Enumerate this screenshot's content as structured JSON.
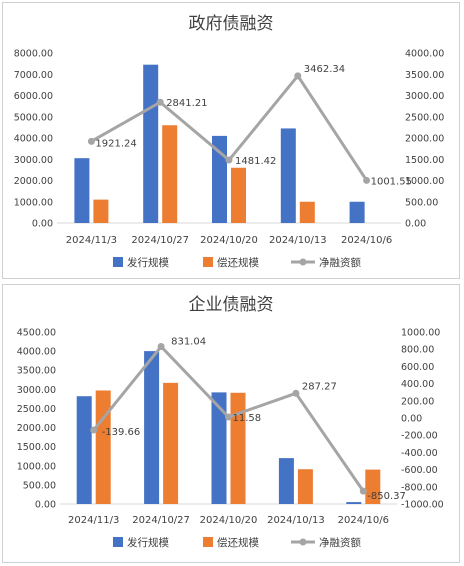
{
  "colors": {
    "issue": "#4472C4",
    "repay": "#ED7D31",
    "net": "#A5A5A5"
  },
  "chart_data": [
    {
      "type": "bar",
      "title": "政府债融资",
      "categories": [
        "2024/11/3",
        "2024/10/27",
        "2024/10/20",
        "2024/10/13",
        "2024/10/6"
      ],
      "series": [
        {
          "name": "发行规模",
          "type": "bar",
          "axis": "left",
          "values": [
            3050,
            7450,
            4100,
            4450,
            1000
          ]
        },
        {
          "name": "偿还规模",
          "type": "bar",
          "axis": "left",
          "values": [
            1100,
            4600,
            2600,
            1000,
            0
          ]
        },
        {
          "name": "净融资额",
          "type": "line",
          "axis": "right",
          "values": [
            1921.24,
            2841.21,
            1481.42,
            3462.34,
            1001.55
          ],
          "labels": [
            "1921.24",
            "2841.21",
            "1481.42",
            "3462.34",
            "1001.55"
          ]
        }
      ],
      "left_axis": {
        "ylim": [
          0,
          8000
        ],
        "ticks": [
          "0.00",
          "1000.00",
          "2000.00",
          "3000.00",
          "4000.00",
          "5000.00",
          "6000.00",
          "7000.00",
          "8000.00"
        ]
      },
      "right_axis": {
        "ylim": [
          0,
          4000
        ],
        "ticks": [
          "0.00",
          "500.00",
          "1000.00",
          "1500.00",
          "2000.00",
          "2500.00",
          "3000.00",
          "3500.00",
          "4000.00"
        ]
      },
      "legend_position": "bottom",
      "grid": false
    },
    {
      "type": "bar",
      "title": "企业债融资",
      "categories": [
        "2024/11/3",
        "2024/10/27",
        "2024/10/20",
        "2024/10/13",
        "2024/10/6"
      ],
      "series": [
        {
          "name": "发行规模",
          "type": "bar",
          "axis": "left",
          "values": [
            2820,
            4000,
            2920,
            1200,
            50
          ]
        },
        {
          "name": "偿还规模",
          "type": "bar",
          "axis": "left",
          "values": [
            2970,
            3170,
            2910,
            910,
            900
          ]
        },
        {
          "name": "净融资额",
          "type": "line",
          "axis": "right",
          "values": [
            -139.66,
            831.04,
            11.58,
            287.27,
            -850.37
          ],
          "labels": [
            "-139.66",
            "831.04",
            "11.58",
            "287.27",
            "-850.37"
          ]
        }
      ],
      "left_axis": {
        "ylim": [
          0,
          4500
        ],
        "ticks": [
          "0.00",
          "500.00",
          "1000.00",
          "1500.00",
          "2000.00",
          "2500.00",
          "3000.00",
          "3500.00",
          "4000.00",
          "4500.00"
        ]
      },
      "right_axis": {
        "ylim": [
          -1000,
          1000
        ],
        "ticks": [
          "-1000.00",
          "-800.00",
          "-600.00",
          "-400.00",
          "-200.00",
          "0.00",
          "200.00",
          "400.00",
          "600.00",
          "800.00",
          "1000.00"
        ]
      },
      "legend_position": "bottom",
      "grid": false
    }
  ]
}
